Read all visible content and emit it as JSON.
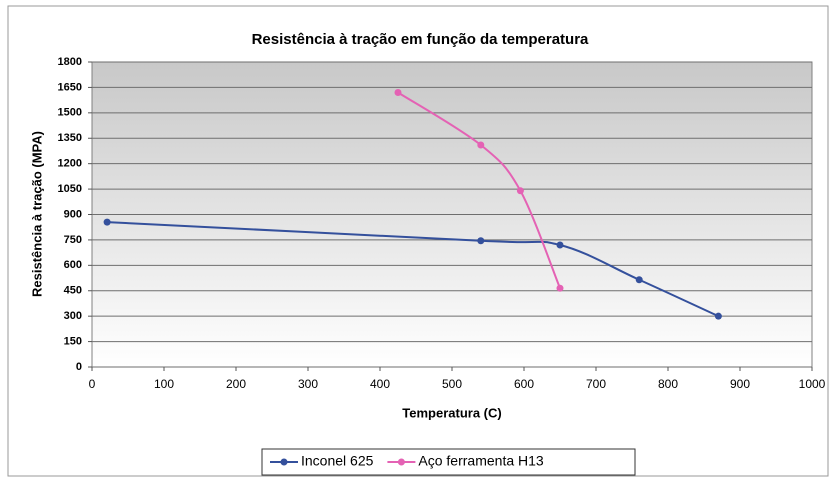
{
  "chart_data": {
    "type": "line",
    "title": "Resistência à tração em função da temperatura",
    "x_label": "Temperatura (C)",
    "y_label": "Resistência à tração (MPA)",
    "series": [
      {
        "name": "Inconel 625",
        "color": "#34509c",
        "x": [
          21,
          540,
          650,
          760,
          870
        ],
        "values": [
          855,
          745,
          720,
          515,
          300
        ]
      },
      {
        "name": "Aço ferramenta H13",
        "color": "#e462b4",
        "x": [
          425,
          540,
          595,
          650
        ],
        "values": [
          1620,
          1310,
          1040,
          465
        ]
      }
    ],
    "xlim": [
      0,
      1000
    ],
    "xticks": [
      0,
      100,
      200,
      300,
      400,
      500,
      600,
      700,
      800,
      900,
      1000
    ],
    "ylim": [
      0,
      1800
    ],
    "yticks": [
      0,
      150,
      300,
      450,
      600,
      750,
      900,
      1050,
      1200,
      1350,
      1500,
      1650,
      1800
    ],
    "grid": true,
    "legend": "bottom"
  }
}
